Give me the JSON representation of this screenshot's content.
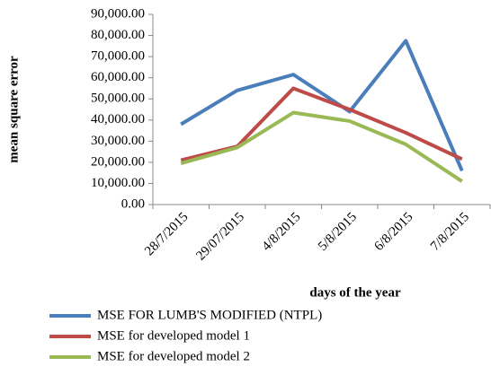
{
  "chart_data": {
    "type": "line",
    "categories": [
      "28/7/2015",
      "29/07/2015",
      "4/8/2015",
      "5/8/2015",
      "6/8/2015",
      "7/8/2015"
    ],
    "series": [
      {
        "name": "MSE FOR LUMB'S MODIFIED (NTPL)",
        "color": "#4a7ebb",
        "values": [
          38000,
          54000,
          61500,
          44000,
          77500,
          16000
        ]
      },
      {
        "name": "MSE for developed model 1",
        "color": "#be4b48",
        "values": [
          21000,
          27500,
          55000,
          45000,
          34000,
          21500
        ]
      },
      {
        "name": "MSE for developed model 2",
        "color": "#98b954",
        "values": [
          19500,
          27000,
          43500,
          39500,
          28500,
          11000
        ]
      }
    ],
    "ylabel": "mean square error",
    "xlabel": "days of the year",
    "ylim": [
      0,
      90000
    ],
    "yticks": [
      {
        "value": 0,
        "label": "0.00"
      },
      {
        "value": 10000,
        "label": "10,000.00"
      },
      {
        "value": 20000,
        "label": "20,000.00"
      },
      {
        "value": 30000,
        "label": "30,000.00"
      },
      {
        "value": 40000,
        "label": "40,000.00"
      },
      {
        "value": 50000,
        "label": "50,000.00"
      },
      {
        "value": 60000,
        "label": "60,000.00"
      },
      {
        "value": 70000,
        "label": "70,000.00"
      },
      {
        "value": 80000,
        "label": "80,000.00"
      },
      {
        "value": 90000,
        "label": "90,000.00"
      }
    ],
    "grid": false,
    "legend": "bottom"
  }
}
